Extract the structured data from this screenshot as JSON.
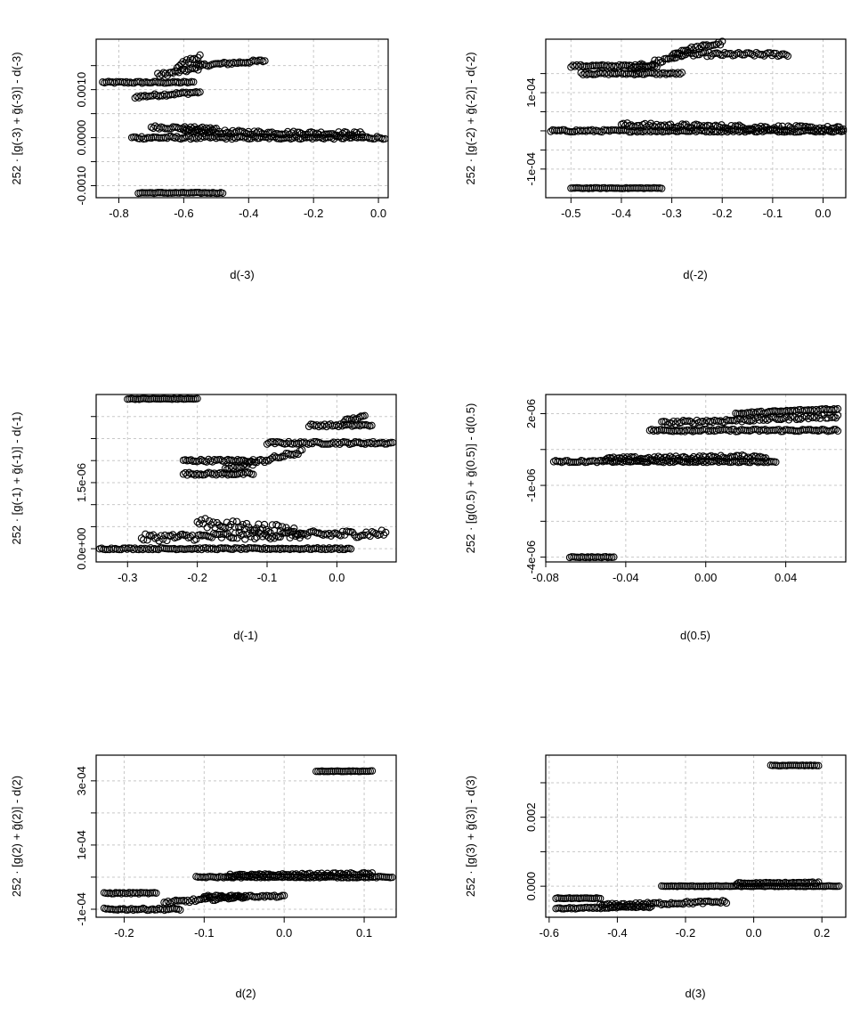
{
  "chart_data": [
    {
      "type": "scatter",
      "xlabel": "d(-3)",
      "ylabel": "252 · [g(-3) + g̃(-3)] - d(-3)",
      "xlim": [
        -0.87,
        0.03
      ],
      "ylim": [
        -0.00125,
        0.00205
      ],
      "xticks": [
        -0.8,
        -0.6,
        -0.4,
        -0.2,
        0.0
      ],
      "xtick_labels": [
        "-0.8",
        "-0.6",
        "-0.4",
        "-0.2",
        "0.0"
      ],
      "yticks": [
        -0.001,
        -0.0005,
        0.0,
        0.0005,
        0.001,
        0.0015
      ],
      "ytick_labels": [
        "-0.0010",
        "",
        "0.0000",
        "",
        "0.0010",
        ""
      ],
      "bands": [
        {
          "x": [
            -0.85,
            -0.57
          ],
          "y": [
            0.00115,
            0.00115
          ],
          "jitter": 2e-05
        },
        {
          "x": [
            -0.75,
            -0.55
          ],
          "y": [
            0.00085,
            0.00095
          ],
          "jitter": 3e-05
        },
        {
          "x": [
            -0.68,
            -0.55
          ],
          "y": [
            0.0013,
            0.00145
          ],
          "jitter": 4e-05
        },
        {
          "x": [
            -0.62,
            -0.55
          ],
          "y": [
            0.0015,
            0.0017
          ],
          "jitter": 5e-05
        },
        {
          "x": [
            -0.56,
            -0.35
          ],
          "y": [
            0.0015,
            0.0016
          ],
          "jitter": 3e-05
        },
        {
          "x": [
            -0.7,
            -0.5
          ],
          "y": [
            0.00022,
            0.00018
          ],
          "jitter": 3e-05
        },
        {
          "x": [
            -0.76,
            0.02
          ],
          "y": [
            0.0,
            0.0
          ],
          "jitter": 3e-05
        },
        {
          "x": [
            -0.6,
            -0.05
          ],
          "y": [
            0.00012,
            8e-05
          ],
          "jitter": 4e-05
        },
        {
          "x": [
            -0.74,
            -0.48
          ],
          "y": [
            -0.00115,
            -0.00115
          ],
          "jitter": 1e-05
        }
      ]
    },
    {
      "type": "scatter",
      "xlabel": "d(-2)",
      "ylabel": "252 · [g(-2) + g̃(-2)] - d(-2)",
      "xlim": [
        -0.55,
        0.045
      ],
      "ylim": [
        -0.000175,
        0.00024
      ],
      "xticks": [
        -0.5,
        -0.4,
        -0.3,
        -0.2,
        -0.1,
        0.0
      ],
      "xtick_labels": [
        "-0.5",
        "-0.4",
        "-0.3",
        "-0.2",
        "-0.1",
        "0.0"
      ],
      "yticks": [
        -0.0001,
        -5e-05,
        0.0,
        5e-05,
        0.0001,
        0.00015
      ],
      "ytick_labels": [
        "-1e-04",
        "",
        "",
        "",
        "1e-04",
        ""
      ],
      "bands": [
        {
          "x": [
            -0.5,
            -0.33
          ],
          "y": [
            0.00017,
            0.00017
          ],
          "jitter": 3e-06
        },
        {
          "x": [
            -0.48,
            -0.28
          ],
          "y": [
            0.00015,
            0.00015
          ],
          "jitter": 3e-06
        },
        {
          "x": [
            -0.38,
            -0.28
          ],
          "y": [
            0.00016,
            0.0002
          ],
          "jitter": 8e-06
        },
        {
          "x": [
            -0.3,
            -0.07
          ],
          "y": [
            0.0002,
            0.0002
          ],
          "jitter": 5e-06
        },
        {
          "x": [
            -0.28,
            -0.2
          ],
          "y": [
            0.00021,
            0.00023
          ],
          "jitter": 5e-06
        },
        {
          "x": [
            -0.54,
            0.04
          ],
          "y": [
            0.0,
            0.0
          ],
          "jitter": 3e-06
        },
        {
          "x": [
            -0.4,
            0.04
          ],
          "y": [
            1.5e-05,
            5e-06
          ],
          "jitter": 6e-06
        },
        {
          "x": [
            -0.5,
            -0.32
          ],
          "y": [
            -0.00015,
            -0.00015
          ],
          "jitter": 1e-06
        }
      ]
    },
    {
      "type": "scatter",
      "xlabel": "d(-1)",
      "ylabel": "252 · [g(-1) + g̃(-1)] - d(-1)",
      "xlim": [
        -0.345,
        0.085
      ],
      "ylim": [
        -3e-07,
        3.5e-06
      ],
      "xticks": [
        -0.3,
        -0.2,
        -0.1,
        0.0
      ],
      "xtick_labels": [
        "-0.3",
        "-0.2",
        "-0.1",
        "0.0"
      ],
      "yticks": [
        0.0,
        5e-07,
        1e-06,
        1.5e-06,
        2e-06,
        2.5e-06,
        3e-06
      ],
      "ytick_labels": [
        "0.0e+00",
        "",
        "",
        "1.5e-06",
        "",
        "",
        ""
      ],
      "bands": [
        {
          "x": [
            -0.3,
            -0.2
          ],
          "y": [
            3.4e-06,
            3.4e-06
          ],
          "jitter": 1e-08
        },
        {
          "x": [
            -0.22,
            -0.12
          ],
          "y": [
            2e-06,
            2e-06
          ],
          "jitter": 3e-08
        },
        {
          "x": [
            -0.22,
            -0.12
          ],
          "y": [
            1.7e-06,
            1.7e-06
          ],
          "jitter": 3e-08
        },
        {
          "x": [
            -0.16,
            -0.05
          ],
          "y": [
            1.8e-06,
            2.2e-06
          ],
          "jitter": 5e-08
        },
        {
          "x": [
            -0.1,
            0.08
          ],
          "y": [
            2.4e-06,
            2.4e-06
          ],
          "jitter": 3e-08
        },
        {
          "x": [
            -0.04,
            0.05
          ],
          "y": [
            2.8e-06,
            2.8e-06
          ],
          "jitter": 3e-08
        },
        {
          "x": [
            0.01,
            0.04
          ],
          "y": [
            2.9e-06,
            3e-06
          ],
          "jitter": 3e-08
        },
        {
          "x": [
            -0.34,
            0.02
          ],
          "y": [
            0.0,
            0.0
          ],
          "jitter": 2e-08
        },
        {
          "x": [
            -0.28,
            0.07
          ],
          "y": [
            2.5e-07,
            3.5e-07
          ],
          "jitter": 8e-08
        },
        {
          "x": [
            -0.2,
            -0.05
          ],
          "y": [
            6e-07,
            4e-07
          ],
          "jitter": 1e-07
        }
      ]
    },
    {
      "type": "scatter",
      "xlabel": "d(0.5)",
      "ylabel": "252 · [g(0.5) + g̃(0.5)] - d(0.5)",
      "xlim": [
        -0.08,
        0.07
      ],
      "ylim": [
        -4.2e-06,
        2.8e-06
      ],
      "xticks": [
        -0.08,
        -0.04,
        0.0,
        0.04
      ],
      "xtick_labels": [
        "-0.08",
        "-0.04",
        "0.00",
        "0.04"
      ],
      "yticks": [
        -4e-06,
        -2.5e-06,
        -1e-06,
        5e-07,
        2e-06
      ],
      "ytick_labels": [
        "-4e-06",
        "",
        "-1e-06",
        "",
        "2e-06"
      ],
      "bands": [
        {
          "x": [
            -0.068,
            -0.046
          ],
          "y": [
            -4e-06,
            -4e-06
          ],
          "jitter": 2e-08
        },
        {
          "x": [
            -0.076,
            0.035
          ],
          "y": [
            0.0,
            0.0
          ],
          "jitter": 4e-08
        },
        {
          "x": [
            -0.05,
            0.03
          ],
          "y": [
            1e-07,
            2e-07
          ],
          "jitter": 8e-08
        },
        {
          "x": [
            -0.028,
            0.066
          ],
          "y": [
            1.3e-06,
            1.3e-06
          ],
          "jitter": 5e-08
        },
        {
          "x": [
            -0.022,
            0.066
          ],
          "y": [
            1.6e-06,
            1.9e-06
          ],
          "jitter": 8e-08
        },
        {
          "x": [
            0.015,
            0.066
          ],
          "y": [
            2e-06,
            2.2e-06
          ],
          "jitter": 5e-08
        }
      ]
    },
    {
      "type": "scatter",
      "xlabel": "d(2)",
      "ylabel": "252 · [g(2) + g̃(2)] - d(2)",
      "xlim": [
        -0.235,
        0.14
      ],
      "ylim": [
        -0.000125,
        0.00038
      ],
      "xticks": [
        -0.2,
        -0.1,
        0.0,
        0.1
      ],
      "xtick_labels": [
        "-0.2",
        "-0.1",
        "0.0",
        "0.1"
      ],
      "yticks": [
        -0.0001,
        0.0,
        0.0001,
        0.0002,
        0.0003
      ],
      "ytick_labels": [
        "-1e-04",
        "",
        "1e-04",
        "",
        "3e-04"
      ],
      "bands": [
        {
          "x": [
            0.04,
            0.11
          ],
          "y": [
            0.00033,
            0.00033
          ],
          "jitter": 1e-06
        },
        {
          "x": [
            -0.225,
            -0.16
          ],
          "y": [
            -5e-05,
            -5e-05
          ],
          "jitter": 2e-06
        },
        {
          "x": [
            -0.225,
            -0.13
          ],
          "y": [
            -0.0001,
            -0.0001
          ],
          "jitter": 3e-06
        },
        {
          "x": [
            -0.15,
            -0.05
          ],
          "y": [
            -8e-05,
            -6e-05
          ],
          "jitter": 5e-06
        },
        {
          "x": [
            -0.1,
            0.0
          ],
          "y": [
            -6e-05,
            -6e-05
          ],
          "jitter": 3e-06
        },
        {
          "x": [
            -0.11,
            0.135
          ],
          "y": [
            0.0,
            0.0
          ],
          "jitter": 2e-06
        },
        {
          "x": [
            -0.07,
            0.11
          ],
          "y": [
            5e-06,
            1e-05
          ],
          "jitter": 4e-06
        }
      ]
    },
    {
      "type": "scatter",
      "xlabel": "d(3)",
      "ylabel": "252 · [g(3) + g̃(3)] - d(3)",
      "xlim": [
        -0.61,
        0.27
      ],
      "ylim": [
        -0.0009,
        0.0038
      ],
      "xticks": [
        -0.6,
        -0.4,
        -0.2,
        0.0,
        0.2
      ],
      "xtick_labels": [
        "-0.6",
        "-0.4",
        "-0.2",
        "0.0",
        "0.2"
      ],
      "yticks": [
        0.0,
        0.001,
        0.002,
        0.003
      ],
      "ytick_labels": [
        "0.000",
        "",
        "0.002",
        ""
      ],
      "bands": [
        {
          "x": [
            0.05,
            0.19
          ],
          "y": [
            0.0035,
            0.0035
          ],
          "jitter": 1e-05
        },
        {
          "x": [
            -0.58,
            -0.45
          ],
          "y": [
            -0.00035,
            -0.00035
          ],
          "jitter": 1e-05
        },
        {
          "x": [
            -0.58,
            -0.3
          ],
          "y": [
            -0.00065,
            -0.0006
          ],
          "jitter": 2e-05
        },
        {
          "x": [
            -0.45,
            -0.08
          ],
          "y": [
            -0.00055,
            -0.00045
          ],
          "jitter": 4e-05
        },
        {
          "x": [
            -0.27,
            0.25
          ],
          "y": [
            0.0,
            0.0
          ],
          "jitter": 1e-05
        },
        {
          "x": [
            -0.05,
            0.19
          ],
          "y": [
            8e-05,
            0.0001
          ],
          "jitter": 2e-05
        }
      ]
    }
  ]
}
